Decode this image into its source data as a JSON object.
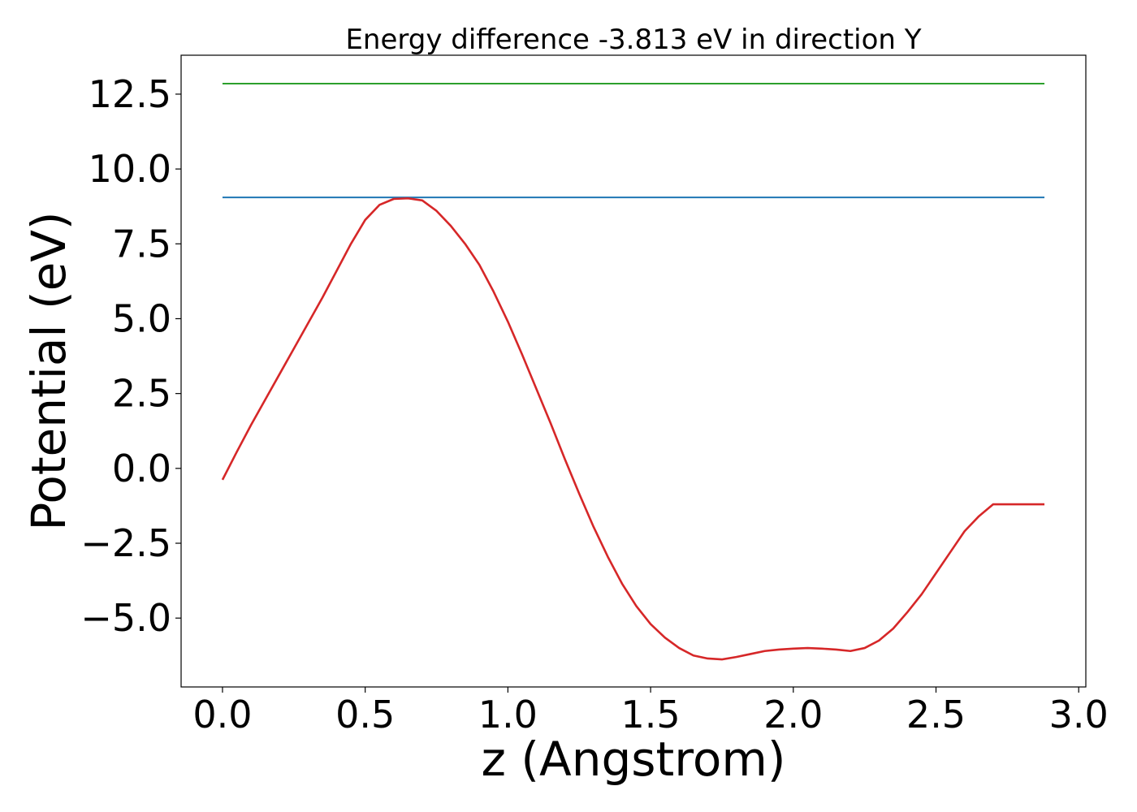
{
  "chart_data": {
    "type": "line",
    "title": "Energy difference -3.813 eV in direction Y",
    "xlabel": "z (Angstrom)",
    "ylabel": "Potential (eV)",
    "xlim": [
      -0.145,
      3.025
    ],
    "ylim": [
      -7.3,
      13.8
    ],
    "xticks": [
      0.0,
      0.5,
      1.0,
      1.5,
      2.0,
      2.5,
      3.0
    ],
    "xtick_labels": [
      "0.0",
      "0.5",
      "1.0",
      "1.5",
      "2.0",
      "2.5",
      "3.0"
    ],
    "yticks": [
      -5.0,
      -2.5,
      0.0,
      2.5,
      5.0,
      7.5,
      10.0,
      12.5
    ],
    "ytick_labels": [
      "−5.0",
      "−2.5",
      "0.0",
      "2.5",
      "5.0",
      "7.5",
      "10.0",
      "12.5"
    ],
    "grid": false,
    "series": [
      {
        "color": "#2ca02c",
        "x": [
          0.0,
          2.88
        ],
        "y": [
          12.85,
          12.85
        ]
      },
      {
        "color": "#1f77b4",
        "x": [
          0.0,
          2.88
        ],
        "y": [
          9.05,
          9.05
        ]
      },
      {
        "color": "#d62728",
        "x": [
          0.0,
          0.05,
          0.1,
          0.15,
          0.2,
          0.25,
          0.3,
          0.35,
          0.4,
          0.45,
          0.5,
          0.55,
          0.6,
          0.65,
          0.7,
          0.75,
          0.8,
          0.85,
          0.9,
          0.95,
          1.0,
          1.05,
          1.1,
          1.15,
          1.2,
          1.25,
          1.3,
          1.35,
          1.4,
          1.45,
          1.5,
          1.55,
          1.6,
          1.65,
          1.7,
          1.75,
          1.8,
          1.85,
          1.9,
          1.95,
          2.0,
          2.05,
          2.1,
          2.15,
          2.2,
          2.25,
          2.3,
          2.35,
          2.4,
          2.45,
          2.5,
          2.55,
          2.6,
          2.65,
          2.7,
          2.75,
          2.8,
          2.85,
          2.88
        ],
        "y": [
          -0.38,
          0.55,
          1.45,
          2.3,
          3.15,
          4.0,
          4.85,
          5.7,
          6.6,
          7.5,
          8.3,
          8.8,
          9.0,
          9.02,
          8.95,
          8.6,
          8.1,
          7.5,
          6.8,
          5.9,
          4.9,
          3.8,
          2.65,
          1.5,
          0.3,
          -0.85,
          -1.95,
          -2.95,
          -3.85,
          -4.6,
          -5.2,
          -5.65,
          -6.0,
          -6.25,
          -6.35,
          -6.38,
          -6.3,
          -6.2,
          -6.1,
          -6.05,
          -6.02,
          -6.0,
          -6.02,
          -6.05,
          -6.1,
          -6.0,
          -5.75,
          -5.35,
          -4.8,
          -4.2,
          -3.5,
          -2.8,
          -2.1,
          -1.6,
          -1.2,
          -1.2,
          -1.2,
          -1.2,
          -1.2
        ]
      }
    ]
  }
}
